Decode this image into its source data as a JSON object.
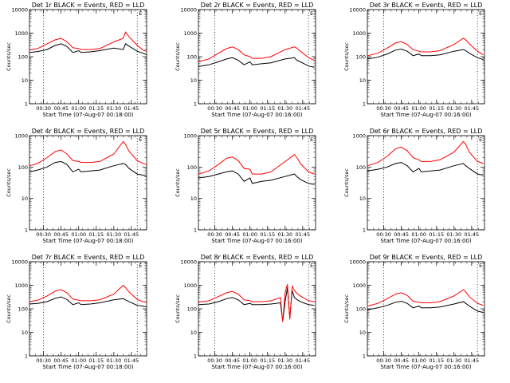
{
  "chart_data": [
    {
      "type": "line",
      "title": "Det 1r BLACK = Events, RED = LLD",
      "xlabel": "Start Time (07-Aug-07 00:18:00)",
      "ylabel": "Counts/sec",
      "yscale": "log",
      "ylim": [
        1,
        10000
      ],
      "xlim": [
        18,
        118
      ],
      "x_ticks": [
        "00:30",
        "00:45",
        "01:00",
        "01:15",
        "01:30",
        "01:45"
      ],
      "y_ticks": [
        "1",
        "10",
        "100",
        "1000",
        "10000"
      ],
      "vlines": [
        30,
        110
      ],
      "marker": "E",
      "series": [
        {
          "color": "#000000",
          "x": [
            18,
            25,
            33,
            40,
            45,
            50,
            55,
            60,
            62,
            70,
            78,
            90,
            98,
            100,
            103,
            110,
            115,
            118
          ],
          "y": [
            150,
            165,
            200,
            300,
            350,
            270,
            150,
            180,
            150,
            160,
            180,
            230,
            200,
            350,
            280,
            170,
            140,
            120
          ]
        },
        {
          "color": "#ff0000",
          "x": [
            18,
            25,
            33,
            40,
            45,
            50,
            55,
            60,
            62,
            70,
            78,
            90,
            98,
            100,
            103,
            110,
            115,
            118
          ],
          "y": [
            190,
            220,
            350,
            520,
            600,
            430,
            240,
            220,
            200,
            200,
            220,
            420,
            600,
            1100,
            700,
            300,
            190,
            170
          ]
        }
      ]
    },
    {
      "type": "line",
      "title": "Det 2r BLACK = Events, RED = LLD",
      "xlabel": "Start Time (07-Aug-07 00:16:00)",
      "ylabel": "Counts/sec",
      "yscale": "log",
      "ylim": [
        1,
        10000
      ],
      "xlim": [
        16,
        116
      ],
      "x_ticks": [
        "00:30",
        "00:45",
        "01:00",
        "01:15",
        "01:30",
        "01:45"
      ],
      "y_ticks": [
        "1",
        "10",
        "100",
        "1000",
        "10000"
      ],
      "vlines": [
        30,
        110
      ],
      "marker": "E",
      "series": [
        {
          "color": "#000000",
          "x": [
            16,
            25,
            33,
            40,
            45,
            50,
            55,
            60,
            62,
            70,
            78,
            90,
            98,
            100,
            103,
            110,
            115
          ],
          "y": [
            38,
            45,
            60,
            80,
            90,
            70,
            45,
            60,
            45,
            50,
            55,
            80,
            90,
            70,
            60,
            40,
            35
          ]
        },
        {
          "color": "#ff0000",
          "x": [
            16,
            25,
            33,
            40,
            45,
            50,
            55,
            60,
            62,
            70,
            78,
            90,
            98,
            100,
            103,
            110,
            115
          ],
          "y": [
            60,
            80,
            140,
            220,
            260,
            200,
            120,
            100,
            85,
            85,
            100,
            200,
            260,
            230,
            170,
            90,
            70
          ]
        }
      ]
    },
    {
      "type": "line",
      "title": "Det 3r BLACK = Events, RED = LLD",
      "xlabel": "Start Time (07-Aug-07 00:16:00)",
      "ylabel": "Counts/sec",
      "yscale": "log",
      "ylim": [
        1,
        10000
      ],
      "xlim": [
        16,
        116
      ],
      "x_ticks": [
        "00:30",
        "00:45",
        "01:00",
        "01:15",
        "01:30",
        "01:45"
      ],
      "y_ticks": [
        "1",
        "10",
        "100",
        "1000",
        "10000"
      ],
      "vlines": [
        30,
        110
      ],
      "marker": "E",
      "series": [
        {
          "color": "#000000",
          "x": [
            16,
            25,
            33,
            40,
            45,
            50,
            55,
            60,
            62,
            70,
            78,
            90,
            98,
            100,
            103,
            110,
            115
          ],
          "y": [
            80,
            95,
            130,
            190,
            210,
            170,
            110,
            130,
            110,
            110,
            120,
            170,
            200,
            180,
            140,
            90,
            75
          ]
        },
        {
          "color": "#ff0000",
          "x": [
            16,
            25,
            33,
            40,
            45,
            50,
            55,
            60,
            62,
            70,
            78,
            90,
            98,
            100,
            103,
            110,
            115
          ],
          "y": [
            110,
            140,
            230,
            380,
            430,
            330,
            200,
            170,
            160,
            160,
            180,
            330,
            600,
            520,
            350,
            170,
            120
          ]
        }
      ]
    },
    {
      "type": "line",
      "title": "Det 4r BLACK = Events, RED = LLD",
      "xlabel": "Start Time (07-Aug-07 00:18:00)",
      "ylabel": "Counts/sec",
      "yscale": "log",
      "ylim": [
        1,
        1000
      ],
      "xlim": [
        18,
        118
      ],
      "x_ticks": [
        "00:30",
        "00:45",
        "01:00",
        "01:15",
        "01:30",
        "01:45"
      ],
      "y_ticks": [
        "1",
        "10",
        "100",
        "1000"
      ],
      "vlines": [
        30,
        110
      ],
      "marker": "E",
      "series": [
        {
          "color": "#000000",
          "x": [
            18,
            25,
            33,
            40,
            45,
            50,
            55,
            60,
            62,
            70,
            78,
            90,
            98,
            100,
            103,
            110,
            115,
            118
          ],
          "y": [
            70,
            80,
            100,
            140,
            150,
            120,
            70,
            85,
            70,
            75,
            80,
            110,
            130,
            120,
            90,
            60,
            55,
            50
          ]
        },
        {
          "color": "#ff0000",
          "x": [
            18,
            25,
            33,
            40,
            45,
            50,
            55,
            60,
            62,
            70,
            78,
            90,
            98,
            100,
            103,
            110,
            115,
            118
          ],
          "y": [
            110,
            130,
            200,
            310,
            350,
            260,
            160,
            150,
            140,
            140,
            150,
            260,
            650,
            520,
            320,
            160,
            130,
            120
          ]
        }
      ]
    },
    {
      "type": "line",
      "title": "Det 5r BLACK = Events, RED = LLD",
      "xlabel": "Start Time (07-Aug-07 00:16:00)",
      "ylabel": "Counts/sec",
      "yscale": "log",
      "ylim": [
        1,
        1000
      ],
      "xlim": [
        16,
        116
      ],
      "x_ticks": [
        "00:30",
        "00:45",
        "01:00",
        "01:15",
        "01:30",
        "01:45"
      ],
      "y_ticks": [
        "1",
        "10",
        "100",
        "1000"
      ],
      "vlines": [
        30,
        110
      ],
      "marker": "E",
      "series": [
        {
          "color": "#000000",
          "x": [
            16,
            25,
            33,
            40,
            45,
            50,
            55,
            60,
            62,
            70,
            78,
            90,
            98,
            100,
            103,
            110,
            115
          ],
          "y": [
            45,
            50,
            60,
            70,
            75,
            60,
            35,
            45,
            30,
            35,
            38,
            50,
            60,
            50,
            40,
            30,
            28
          ]
        },
        {
          "color": "#ff0000",
          "x": [
            16,
            25,
            33,
            40,
            45,
            50,
            55,
            60,
            62,
            70,
            78,
            90,
            98,
            100,
            103,
            110,
            115
          ],
          "y": [
            60,
            75,
            120,
            190,
            210,
            160,
            90,
            85,
            60,
            60,
            70,
            150,
            250,
            200,
            130,
            70,
            60
          ]
        }
      ]
    },
    {
      "type": "line",
      "title": "Det 6r BLACK = Events, RED = LLD",
      "xlabel": "Start Time (07-Aug-07 00:16:00)",
      "ylabel": "Counts/sec",
      "yscale": "log",
      "ylim": [
        1,
        1000
      ],
      "xlim": [
        16,
        116
      ],
      "x_ticks": [
        "00:30",
        "00:45",
        "01:00",
        "01:15",
        "01:30",
        "01:45"
      ],
      "y_ticks": [
        "1",
        "10",
        "100",
        "1000"
      ],
      "vlines": [
        30,
        110
      ],
      "marker": "E",
      "series": [
        {
          "color": "#000000",
          "x": [
            16,
            25,
            33,
            40,
            45,
            50,
            55,
            60,
            62,
            70,
            78,
            90,
            98,
            100,
            103,
            110,
            115
          ],
          "y": [
            75,
            85,
            100,
            130,
            140,
            110,
            70,
            90,
            70,
            75,
            80,
            110,
            130,
            110,
            90,
            60,
            55
          ]
        },
        {
          "color": "#ff0000",
          "x": [
            16,
            25,
            33,
            40,
            45,
            50,
            55,
            60,
            62,
            70,
            78,
            90,
            98,
            100,
            103,
            110,
            115
          ],
          "y": [
            110,
            140,
            220,
            380,
            430,
            330,
            200,
            170,
            150,
            150,
            170,
            300,
            650,
            520,
            300,
            150,
            130
          ]
        }
      ]
    },
    {
      "type": "line",
      "title": "Det 7r BLACK = Events, RED = LLD",
      "xlabel": "Start Time (07-Aug-07 00:18:00)",
      "ylabel": "Counts/sec",
      "yscale": "log",
      "ylim": [
        1,
        10000
      ],
      "xlim": [
        18,
        118
      ],
      "x_ticks": [
        "00:30",
        "00:45",
        "01:00",
        "01:15",
        "01:30",
        "01:45"
      ],
      "y_ticks": [
        "1",
        "10",
        "100",
        "1000",
        "10000"
      ],
      "vlines": [
        30,
        110
      ],
      "marker": "E",
      "series": [
        {
          "color": "#000000",
          "x": [
            18,
            25,
            33,
            40,
            45,
            50,
            55,
            60,
            62,
            70,
            78,
            90,
            98,
            100,
            103,
            110,
            115,
            118
          ],
          "y": [
            160,
            170,
            200,
            280,
            320,
            250,
            150,
            180,
            150,
            160,
            180,
            240,
            270,
            240,
            200,
            140,
            130,
            120
          ]
        },
        {
          "color": "#ff0000",
          "x": [
            18,
            25,
            33,
            40,
            45,
            50,
            55,
            60,
            62,
            70,
            78,
            90,
            98,
            100,
            103,
            110,
            115,
            118
          ],
          "y": [
            200,
            230,
            350,
            560,
            650,
            480,
            260,
            230,
            220,
            220,
            240,
            420,
            1000,
            800,
            520,
            250,
            200,
            190
          ]
        }
      ]
    },
    {
      "type": "line",
      "title": "Det 8r BLACK = Events, RED = LLD",
      "xlabel": "Start Time (07-Aug-07 00:16:00)",
      "ylabel": "Counts/sec",
      "yscale": "log",
      "ylim": [
        1,
        10000
      ],
      "xlim": [
        16,
        116
      ],
      "x_ticks": [
        "00:30",
        "00:45",
        "01:00",
        "01:15",
        "01:30",
        "01:45"
      ],
      "y_ticks": [
        "1",
        "10",
        "100",
        "1000",
        "10000"
      ],
      "vlines": [
        30,
        110
      ],
      "marker": "E",
      "series": [
        {
          "color": "#000000",
          "x": [
            16,
            25,
            33,
            40,
            45,
            50,
            55,
            60,
            62,
            70,
            78,
            86,
            88,
            90,
            92,
            94,
            96,
            98,
            100,
            103,
            110,
            115
          ],
          "y": [
            150,
            160,
            200,
            270,
            300,
            240,
            150,
            170,
            150,
            150,
            160,
            180,
            30,
            200,
            800,
            40,
            600,
            300,
            250,
            200,
            150,
            140
          ]
        },
        {
          "color": "#ff0000",
          "x": [
            16,
            25,
            33,
            40,
            45,
            50,
            55,
            60,
            62,
            70,
            78,
            86,
            88,
            90,
            92,
            94,
            96,
            98,
            100,
            103,
            110,
            115
          ],
          "y": [
            190,
            220,
            330,
            480,
            550,
            420,
            240,
            220,
            200,
            200,
            220,
            300,
            28,
            500,
            1100,
            35,
            900,
            600,
            450,
            350,
            220,
            200
          ]
        }
      ]
    },
    {
      "type": "line",
      "title": "Det 9r BLACK = Events, RED = LLD",
      "xlabel": "Start Time (07-Aug-07 00:16:00)",
      "ylabel": "Counts/sec",
      "yscale": "log",
      "ylim": [
        1,
        10000
      ],
      "xlim": [
        16,
        116
      ],
      "x_ticks": [
        "00:30",
        "00:45",
        "01:00",
        "01:15",
        "01:30",
        "01:45"
      ],
      "y_ticks": [
        "1",
        "10",
        "100",
        "1000",
        "10000"
      ],
      "vlines": [
        30,
        110
      ],
      "marker": "E",
      "series": [
        {
          "color": "#000000",
          "x": [
            16,
            25,
            33,
            40,
            45,
            50,
            55,
            60,
            62,
            70,
            78,
            90,
            98,
            100,
            103,
            110,
            115
          ],
          "y": [
            90,
            110,
            140,
            190,
            210,
            170,
            110,
            130,
            110,
            110,
            120,
            160,
            200,
            170,
            130,
            80,
            70
          ]
        },
        {
          "color": "#ff0000",
          "x": [
            16,
            25,
            33,
            40,
            45,
            50,
            55,
            60,
            62,
            70,
            78,
            90,
            98,
            100,
            103,
            110,
            115
          ],
          "y": [
            130,
            170,
            270,
            420,
            480,
            370,
            210,
            190,
            180,
            180,
            200,
            350,
            650,
            520,
            330,
            170,
            140
          ]
        }
      ]
    }
  ]
}
